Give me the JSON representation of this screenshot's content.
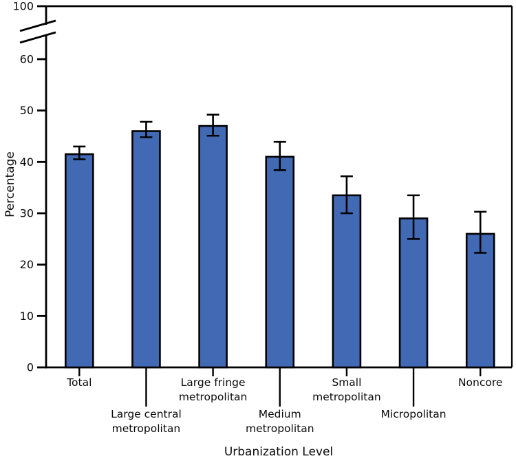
{
  "page": {
    "background": "#FFFFFF",
    "text_color": "#0A0A0A"
  },
  "chart_data": {
    "type": "bar",
    "title": "",
    "xlabel": "Urbanization Level",
    "ylabel": "Percentage",
    "y_ticks": [
      0,
      10,
      20,
      30,
      40,
      50,
      60,
      100
    ],
    "y_axis_break": {
      "between": [
        60,
        100
      ]
    },
    "ylim_displayed": [
      0,
      60
    ],
    "grid": false,
    "legend": "none",
    "bar_color": "#4169B4",
    "bar_border_color": "#000000",
    "error_bar_color": "#000000",
    "categories": [
      {
        "label": "Total",
        "lines": [
          "Total"
        ],
        "row": 1
      },
      {
        "label": "Large central metropolitan",
        "lines": [
          "Large central",
          "metropolitan"
        ],
        "row": 2
      },
      {
        "label": "Large fringe metropolitan",
        "lines": [
          "Large fringe",
          "metropolitan"
        ],
        "row": 1
      },
      {
        "label": "Medium metropolitan",
        "lines": [
          "Medium",
          "metropolitan"
        ],
        "row": 2
      },
      {
        "label": "Small metropolitan",
        "lines": [
          "Small",
          "metropolitan"
        ],
        "row": 1
      },
      {
        "label": "Micropolitan",
        "lines": [
          "Micropolitan"
        ],
        "row": 2
      },
      {
        "label": "Noncore",
        "lines": [
          "Noncore"
        ],
        "row": 1
      }
    ],
    "values": [
      41.5,
      46.0,
      47.0,
      41.0,
      33.5,
      29.0,
      26.0
    ],
    "ci_low": [
      40.5,
      44.8,
      45.1,
      38.4,
      30.0,
      25.0,
      22.3
    ],
    "ci_high": [
      43.0,
      47.8,
      49.2,
      43.9,
      37.2,
      33.5,
      30.3
    ]
  }
}
